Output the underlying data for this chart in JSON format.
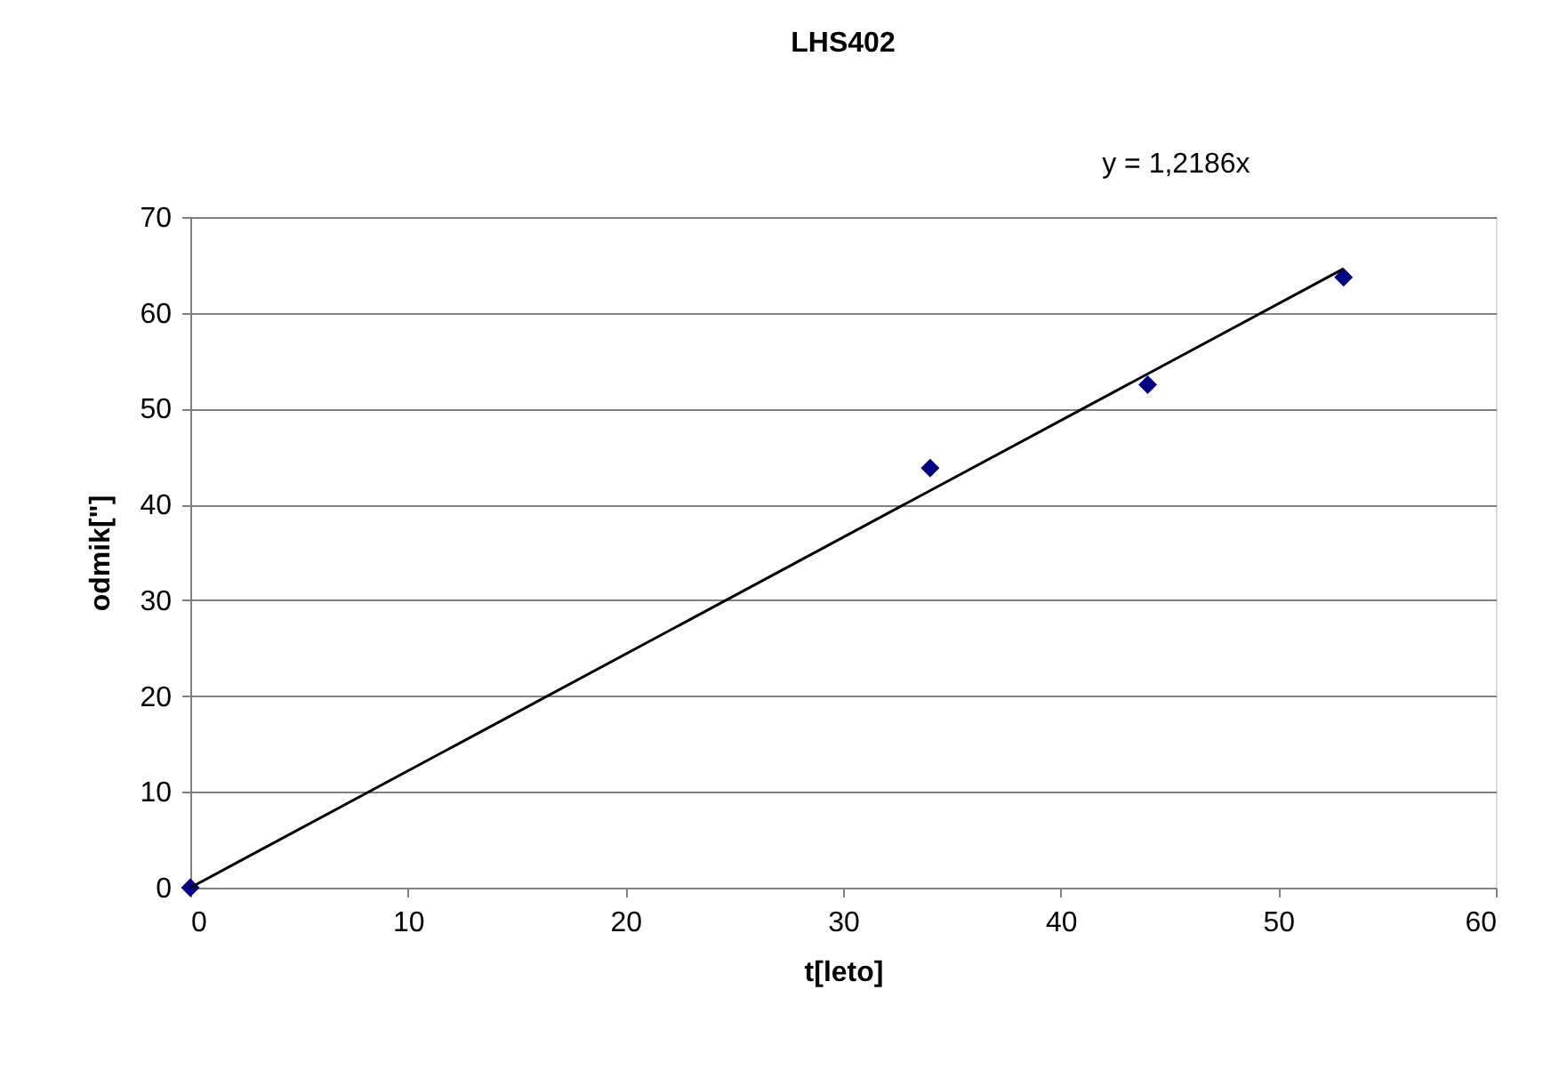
{
  "chart_data": {
    "type": "scatter",
    "title": "LHS402",
    "xlabel": "t[leto]",
    "ylabel": "odmik[\"]",
    "annotations": [
      "y = 1,2186x"
    ],
    "series": [
      {
        "color": "#000080",
        "marker": "diamond",
        "x": [
          0,
          34,
          44,
          53
        ],
        "values": [
          0,
          43.8,
          52.5,
          63.7
        ]
      },
      {
        "type": "line",
        "color": "#000000",
        "marker": "none",
        "line_style": "solid",
        "x": [
          0,
          53
        ],
        "values": [
          0,
          64.6
        ]
      }
    ],
    "xlim": [
      0,
      60
    ],
    "xticks": [
      0,
      10,
      20,
      30,
      40,
      50,
      60
    ],
    "ylim": [
      0,
      70
    ],
    "yticks": [
      0,
      10,
      20,
      30,
      40,
      50,
      60,
      70
    ],
    "grid": "y"
  }
}
